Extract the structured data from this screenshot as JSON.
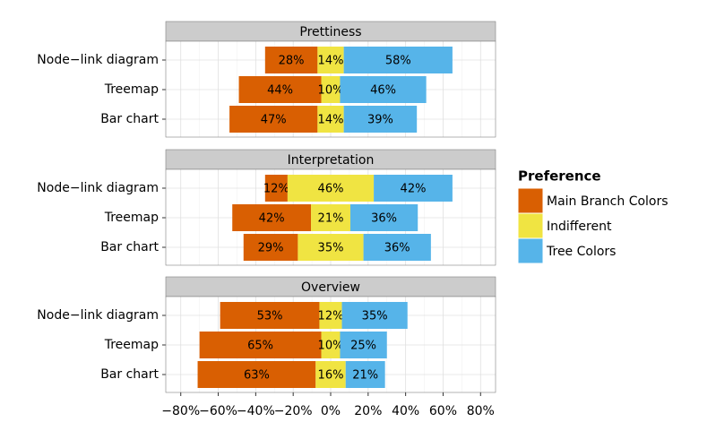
{
  "chart_data": {
    "type": "bar",
    "layout": "diverging",
    "legend": {
      "title": "Preference",
      "position": "right"
    },
    "series": [
      {
        "name": "Main Branch Colors",
        "color": "#d95f02"
      },
      {
        "name": "Indifferent",
        "color": "#f0e442"
      },
      {
        "name": "Tree Colors",
        "color": "#56b4e9"
      }
    ],
    "xlim": [
      -88,
      88
    ],
    "xticks": [
      {
        "value": -80,
        "label": "−80%"
      },
      {
        "value": -60,
        "label": "−60%"
      },
      {
        "value": -40,
        "label": "−40%"
      },
      {
        "value": -20,
        "label": "−20%"
      },
      {
        "value": 0,
        "label": "0%"
      },
      {
        "value": 20,
        "label": "20%"
      },
      {
        "value": 40,
        "label": "40%"
      },
      {
        "value": 60,
        "label": "60%"
      },
      {
        "value": 80,
        "label": "80%"
      }
    ],
    "grid": true,
    "facets": [
      {
        "title": "Prettiness",
        "categories": [
          "Node−link diagram",
          "Treemap",
          "Bar chart"
        ],
        "series": [
          {
            "values": [
              28,
              44,
              47
            ],
            "value_labels": [
              "28%",
              "44%",
              "47%"
            ]
          },
          {
            "values": [
              14,
              10,
              14
            ],
            "value_labels": [
              "14%",
              "10%",
              "14%"
            ]
          },
          {
            "values": [
              58,
              46,
              39
            ],
            "value_labels": [
              "58%",
              "46%",
              "39%"
            ]
          }
        ]
      },
      {
        "title": "Interpretation",
        "categories": [
          "Node−link diagram",
          "Treemap",
          "Bar chart"
        ],
        "series": [
          {
            "values": [
              12,
              42,
              29
            ],
            "value_labels": [
              "12%",
              "42%",
              "29%"
            ]
          },
          {
            "values": [
              46,
              21,
              35
            ],
            "value_labels": [
              "46%",
              "21%",
              "35%"
            ]
          },
          {
            "values": [
              42,
              36,
              36
            ],
            "value_labels": [
              "42%",
              "36%",
              "36%"
            ]
          }
        ]
      },
      {
        "title": "Overview",
        "categories": [
          "Node−link diagram",
          "Treemap",
          "Bar chart"
        ],
        "series": [
          {
            "values": [
              53,
              65,
              63
            ],
            "value_labels": [
              "53%",
              "65%",
              "63%"
            ]
          },
          {
            "values": [
              12,
              10,
              16
            ],
            "value_labels": [
              "12%",
              "10%",
              "16%"
            ]
          },
          {
            "values": [
              35,
              25,
              21
            ],
            "value_labels": [
              "35%",
              "25%",
              "21%"
            ]
          }
        ]
      }
    ]
  }
}
